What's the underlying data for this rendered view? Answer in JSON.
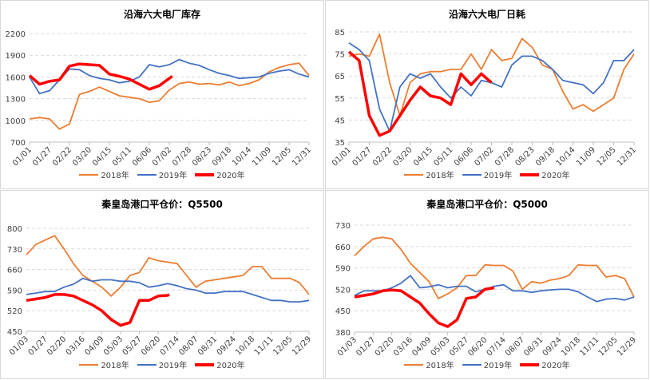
{
  "colors": {
    "2018": "#ED7D31",
    "2019": "#4472C4",
    "2020": "#FF0000"
  },
  "chart_data": [
    {
      "type": "line",
      "title": "沿海六大电厂库存",
      "xlabel": "",
      "ylabel": "",
      "ylim": [
        700,
        2200
      ],
      "yticks": [
        700,
        1000,
        1300,
        1600,
        1900,
        2200
      ],
      "xticks": [
        "01/01",
        "01/27",
        "02/22",
        "03/20",
        "04/15",
        "05/11",
        "06/06",
        "07/02",
        "07/28",
        "08/23",
        "09/18",
        "10/14",
        "11/09",
        "12/05",
        "12/31"
      ],
      "grid": true,
      "legend": "bottom",
      "series": [
        {
          "name": "2018年",
          "x": [
            "01/01",
            "01/14",
            "01/27",
            "02/09",
            "02/22",
            "03/07",
            "03/20",
            "04/02",
            "04/15",
            "04/28",
            "05/11",
            "05/24",
            "06/06",
            "06/19",
            "07/02",
            "07/15",
            "07/28",
            "08/10",
            "08/23",
            "09/05",
            "09/18",
            "10/01",
            "10/14",
            "10/27",
            "11/09",
            "11/22",
            "12/05",
            "12/18",
            "12/31"
          ],
          "values": [
            1020,
            1040,
            1020,
            880,
            950,
            1360,
            1400,
            1460,
            1400,
            1340,
            1320,
            1300,
            1250,
            1270,
            1420,
            1510,
            1530,
            1500,
            1510,
            1490,
            1530,
            1480,
            1510,
            1560,
            1670,
            1730,
            1770,
            1790,
            1620
          ]
        },
        {
          "name": "2019年",
          "x": [
            "01/01",
            "01/14",
            "01/27",
            "02/09",
            "02/22",
            "03/07",
            "03/20",
            "04/02",
            "04/15",
            "04/28",
            "05/11",
            "05/24",
            "06/06",
            "06/19",
            "07/02",
            "07/15",
            "07/28",
            "08/10",
            "08/23",
            "09/05",
            "09/18",
            "10/01",
            "10/14",
            "10/27",
            "11/09",
            "11/22",
            "12/05",
            "12/18",
            "12/31"
          ],
          "values": [
            1600,
            1370,
            1410,
            1560,
            1710,
            1700,
            1620,
            1580,
            1560,
            1520,
            1540,
            1600,
            1770,
            1740,
            1770,
            1840,
            1790,
            1760,
            1700,
            1650,
            1620,
            1580,
            1590,
            1600,
            1650,
            1680,
            1700,
            1640,
            1600
          ]
        },
        {
          "name": "2020年",
          "x": [
            "01/01",
            "01/14",
            "01/27",
            "02/09",
            "02/22",
            "03/07",
            "03/20",
            "04/02",
            "04/15",
            "04/28",
            "05/11",
            "05/24",
            "06/06",
            "06/19",
            "07/02",
            "07/06"
          ],
          "values": [
            1620,
            1500,
            1540,
            1560,
            1750,
            1780,
            1770,
            1760,
            1640,
            1610,
            1570,
            1500,
            1430,
            1480,
            1580,
            1610
          ]
        }
      ]
    },
    {
      "type": "line",
      "title": "沿海六大电厂日耗",
      "xlabel": "",
      "ylabel": "",
      "ylim": [
        35,
        85
      ],
      "yticks": [
        35,
        45,
        55,
        65,
        75,
        85
      ],
      "xticks": [
        "01/01",
        "01/27",
        "02/22",
        "03/20",
        "04/15",
        "05/11",
        "06/06",
        "07/02",
        "07/28",
        "08/23",
        "09/18",
        "10/14",
        "11/09",
        "12/05",
        "12/31"
      ],
      "grid": true,
      "legend": "bottom",
      "series": [
        {
          "name": "2018年",
          "x": [
            "01/01",
            "01/14",
            "01/27",
            "02/09",
            "02/22",
            "03/07",
            "03/20",
            "04/02",
            "04/15",
            "04/28",
            "05/11",
            "05/24",
            "06/06",
            "06/19",
            "07/02",
            "07/15",
            "07/28",
            "08/10",
            "08/23",
            "09/05",
            "09/18",
            "10/01",
            "10/14",
            "10/27",
            "11/09",
            "11/22",
            "12/05",
            "12/18",
            "12/31"
          ],
          "values": [
            74,
            75,
            74,
            84,
            62,
            47,
            62,
            66,
            67,
            67,
            68,
            68,
            75,
            68,
            77,
            72,
            73,
            82,
            78,
            70,
            68,
            58,
            50,
            52,
            49,
            52,
            55,
            68,
            75
          ]
        },
        {
          "name": "2019年",
          "x": [
            "01/01",
            "01/14",
            "01/27",
            "02/09",
            "02/22",
            "03/07",
            "03/20",
            "04/02",
            "04/15",
            "04/28",
            "05/11",
            "05/24",
            "06/06",
            "06/19",
            "07/02",
            "07/15",
            "07/28",
            "08/10",
            "08/23",
            "09/05",
            "09/18",
            "10/01",
            "10/14",
            "10/27",
            "11/09",
            "11/22",
            "12/05",
            "12/18",
            "12/31"
          ],
          "values": [
            80,
            77,
            72,
            50,
            40,
            60,
            66,
            64,
            66,
            60,
            55,
            60,
            56,
            63,
            62,
            60,
            70,
            74,
            74,
            72,
            68,
            63,
            62,
            61,
            57,
            62,
            72,
            72,
            77
          ]
        },
        {
          "name": "2020年",
          "x": [
            "01/01",
            "01/14",
            "01/27",
            "02/09",
            "02/22",
            "03/07",
            "03/20",
            "04/02",
            "04/15",
            "04/28",
            "05/11",
            "05/24",
            "06/06",
            "06/19",
            "07/02"
          ],
          "values": [
            76,
            72,
            47,
            38,
            40,
            47,
            54,
            60,
            56,
            55,
            52,
            66,
            61,
            66,
            62
          ]
        }
      ]
    },
    {
      "type": "line",
      "title": "秦皇岛港口平仓价：Q5500",
      "xlabel": "",
      "ylabel": "",
      "ylim": [
        450,
        800
      ],
      "yticks": [
        450,
        520,
        590,
        660,
        730,
        800
      ],
      "xticks": [
        "01/03",
        "01/27",
        "02/20",
        "03/16",
        "04/09",
        "05/03",
        "05/27",
        "06/20",
        "07/14",
        "08/07",
        "08/31",
        "09/24",
        "10/18",
        "11/11",
        "12/05",
        "12/29"
      ],
      "grid": true,
      "legend": "bottom",
      "series": [
        {
          "name": "2018年",
          "x": [
            "01/03",
            "01/15",
            "01/27",
            "02/08",
            "02/20",
            "03/04",
            "03/16",
            "03/28",
            "04/09",
            "04/21",
            "05/03",
            "05/15",
            "05/27",
            "06/08",
            "06/20",
            "07/02",
            "07/14",
            "07/26",
            "08/07",
            "08/19",
            "08/31",
            "09/12",
            "09/24",
            "10/06",
            "10/18",
            "10/30",
            "11/11",
            "11/23",
            "12/05",
            "12/17",
            "12/29"
          ],
          "values": [
            710,
            745,
            760,
            775,
            730,
            680,
            640,
            620,
            600,
            570,
            600,
            640,
            650,
            700,
            690,
            685,
            680,
            640,
            600,
            620,
            625,
            630,
            635,
            640,
            670,
            670,
            630,
            630,
            630,
            615,
            575
          ]
        },
        {
          "name": "2019年",
          "x": [
            "01/03",
            "01/15",
            "01/27",
            "02/08",
            "02/20",
            "03/04",
            "03/16",
            "03/28",
            "04/09",
            "04/21",
            "05/03",
            "05/15",
            "05/27",
            "06/08",
            "06/20",
            "07/02",
            "07/14",
            "07/26",
            "08/07",
            "08/19",
            "08/31",
            "09/12",
            "09/24",
            "10/06",
            "10/18",
            "10/30",
            "11/11",
            "11/23",
            "12/05",
            "12/17",
            "12/29"
          ],
          "values": [
            575,
            580,
            585,
            585,
            600,
            610,
            630,
            620,
            625,
            625,
            620,
            620,
            615,
            600,
            605,
            612,
            605,
            595,
            590,
            580,
            580,
            585,
            585,
            585,
            575,
            565,
            555,
            555,
            550,
            550,
            555
          ]
        },
        {
          "name": "2020年",
          "x": [
            "01/03",
            "01/15",
            "01/27",
            "02/08",
            "02/20",
            "03/04",
            "03/16",
            "03/28",
            "04/09",
            "04/21",
            "05/03",
            "05/15",
            "05/27",
            "06/08",
            "06/20",
            "07/02",
            "07/04"
          ],
          "values": [
            555,
            560,
            565,
            575,
            575,
            570,
            555,
            540,
            520,
            490,
            470,
            480,
            555,
            555,
            570,
            572,
            575
          ]
        }
      ]
    },
    {
      "type": "line",
      "title": "秦皇岛港口平仓价：Q5000",
      "xlabel": "",
      "ylabel": "",
      "ylim": [
        380,
        730
      ],
      "yticks": [
        380,
        450,
        520,
        590,
        660,
        730
      ],
      "xticks": [
        "01/03",
        "01/27",
        "02/20",
        "03/16",
        "04/09",
        "05/03",
        "05/27",
        "06/20",
        "07/14",
        "08/07",
        "08/31",
        "09/24",
        "10/18",
        "11/11",
        "12/05",
        "12/29"
      ],
      "grid": true,
      "legend": "bottom",
      "series": [
        {
          "name": "2018年",
          "x": [
            "01/03",
            "01/15",
            "01/27",
            "02/08",
            "02/20",
            "03/04",
            "03/16",
            "03/28",
            "04/09",
            "04/21",
            "05/03",
            "05/15",
            "05/27",
            "06/08",
            "06/20",
            "07/02",
            "07/14",
            "07/26",
            "08/07",
            "08/19",
            "08/31",
            "09/12",
            "09/24",
            "10/06",
            "10/18",
            "10/30",
            "11/11",
            "11/23",
            "12/05",
            "12/17",
            "12/29"
          ],
          "values": [
            630,
            660,
            685,
            690,
            685,
            650,
            605,
            575,
            545,
            490,
            505,
            525,
            565,
            565,
            600,
            598,
            598,
            580,
            520,
            545,
            540,
            550,
            555,
            565,
            600,
            598,
            598,
            560,
            565,
            555,
            495
          ]
        },
        {
          "name": "2019年",
          "x": [
            "01/03",
            "01/15",
            "01/27",
            "02/08",
            "02/20",
            "03/04",
            "03/16",
            "03/28",
            "04/09",
            "04/21",
            "05/03",
            "05/15",
            "05/27",
            "06/08",
            "06/20",
            "07/02",
            "07/14",
            "07/26",
            "08/07",
            "08/19",
            "08/31",
            "09/12",
            "09/24",
            "10/06",
            "10/18",
            "10/30",
            "11/11",
            "11/23",
            "12/05",
            "12/17",
            "12/29"
          ],
          "values": [
            500,
            515,
            515,
            515,
            525,
            540,
            565,
            525,
            528,
            535,
            525,
            530,
            530,
            512,
            520,
            530,
            535,
            515,
            515,
            510,
            515,
            518,
            520,
            520,
            512,
            495,
            480,
            488,
            490,
            485,
            495
          ]
        },
        {
          "name": "2020年",
          "x": [
            "01/03",
            "01/15",
            "01/27",
            "02/08",
            "02/20",
            "03/04",
            "03/16",
            "03/28",
            "04/09",
            "04/21",
            "05/03",
            "05/15",
            "05/27",
            "06/08",
            "06/20",
            "07/02"
          ],
          "values": [
            495,
            500,
            505,
            515,
            518,
            515,
            495,
            475,
            440,
            410,
            398,
            420,
            490,
            495,
            520,
            525
          ]
        }
      ]
    }
  ]
}
